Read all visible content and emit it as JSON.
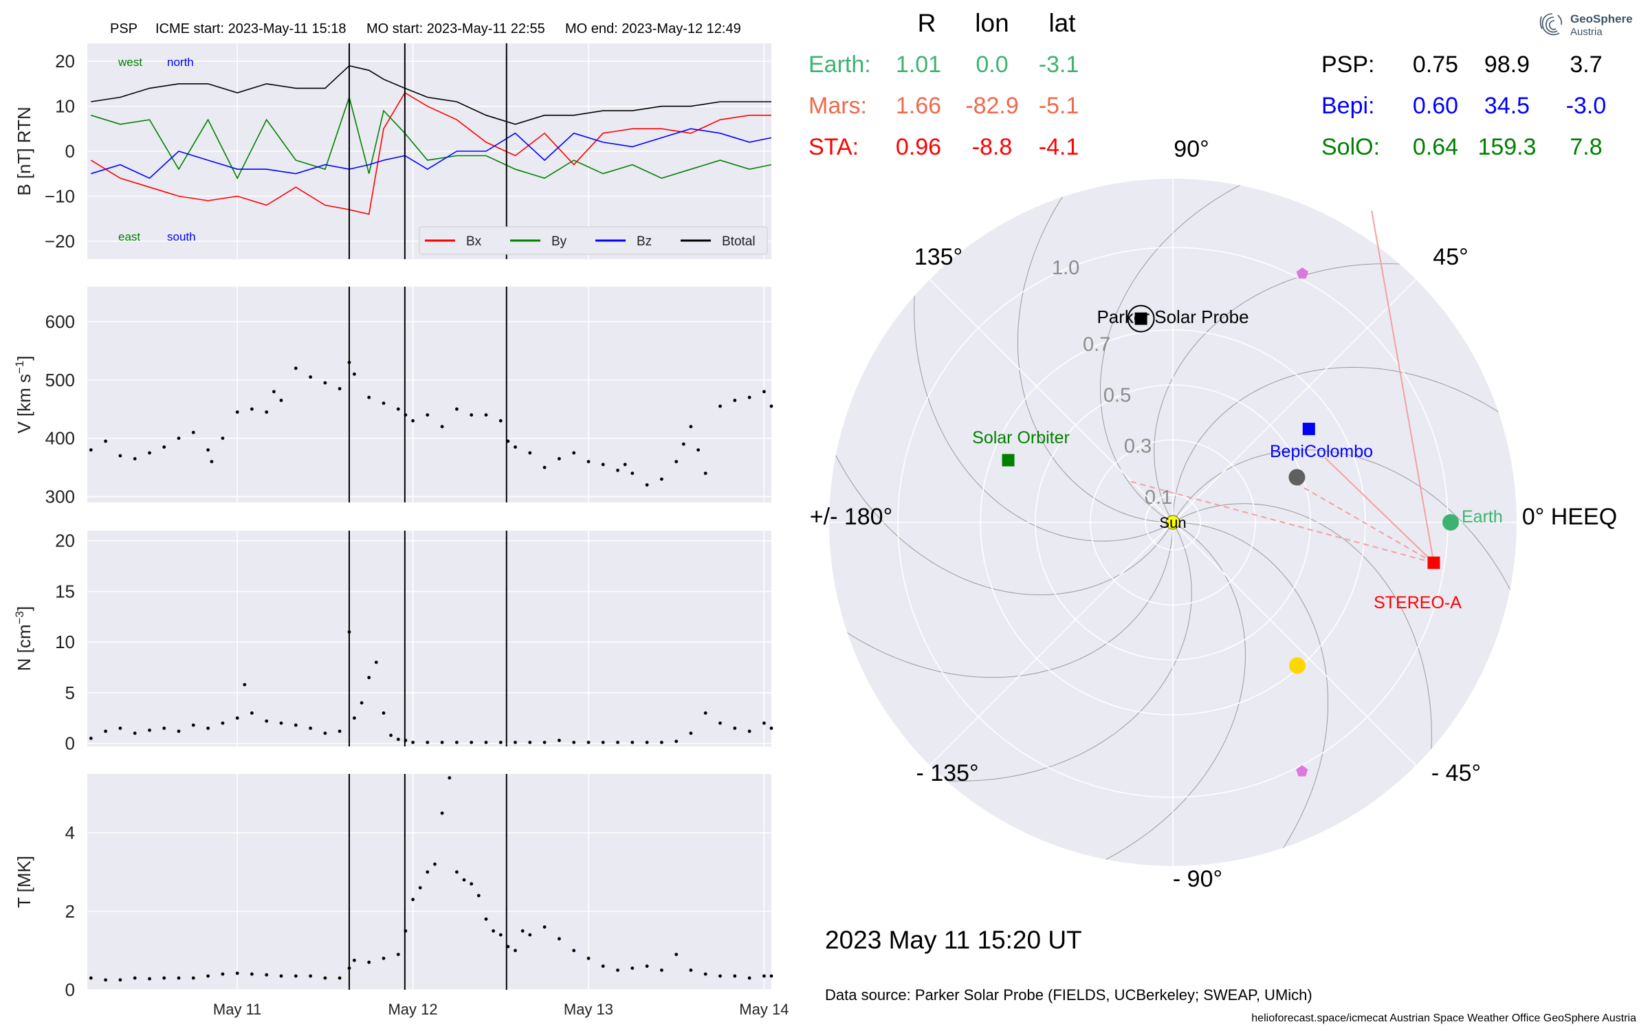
{
  "header": {
    "spacecraft": "PSP",
    "icme_start": "ICME start: 2023-May-11 15:18",
    "mo_start": "MO start: 2023-May-11 22:55",
    "mo_end": "MO end: 2023-May-12 12:49"
  },
  "table": {
    "columns": [
      "R",
      "lon",
      "lat"
    ],
    "left": [
      {
        "name": "Earth:",
        "R": "1.01",
        "lon": "0.0",
        "lat": "-3.1",
        "color": "#3cb371"
      },
      {
        "name": "Mars:",
        "R": "1.66",
        "lon": "-82.9",
        "lat": "-5.1",
        "color": "#f0694b"
      },
      {
        "name": "STA:",
        "R": "0.96",
        "lon": "-8.8",
        "lat": "-4.1",
        "color": "#ff0000"
      }
    ],
    "right": [
      {
        "name": "PSP:",
        "R": "0.75",
        "lon": "98.9",
        "lat": "3.7",
        "color": "#000000"
      },
      {
        "name": "Bepi:",
        "R": "0.60",
        "lon": "34.5",
        "lat": "-3.0",
        "color": "#0000ff"
      },
      {
        "name": "SolO:",
        "R": "0.64",
        "lon": "159.3",
        "lat": "7.8",
        "color": "#008000"
      }
    ]
  },
  "logo": {
    "name": "GeoSphere",
    "sub": "Austria"
  },
  "date_text": "2023 May 11  15:20 UT",
  "data_source": "Data source: Parker Solar Probe (FIELDS, UCBerkeley; SWEAP, UMich)",
  "footer": "helioforecast.space/icmecat   Austrian Space Weather Office   GeoSphere Austria",
  "chart_data": [
    {
      "type": "line",
      "ylabel": "B [nT] RTN",
      "ylim": [
        -24,
        24
      ],
      "yticks": [
        -20,
        -10,
        0,
        10,
        20
      ],
      "ytick_labels": [
        "−20",
        "−10",
        "0",
        "10",
        "20"
      ],
      "x_ticks": [
        "May 11",
        "May 12",
        "May 13",
        "May 14"
      ],
      "x_tick_hours": [
        24,
        48,
        72,
        96
      ],
      "xlim_hours": [
        3.5,
        97
      ],
      "event_lines_hours": [
        39.3,
        46.9,
        60.8
      ],
      "corner_labels": [
        {
          "text": "west",
          "color": "#008000",
          "pos": "top-left"
        },
        {
          "text": "north",
          "color": "#0000ff",
          "pos": "top-left"
        },
        {
          "text": "east",
          "color": "#008000",
          "pos": "bottom-left"
        },
        {
          "text": "south",
          "color": "#0000ff",
          "pos": "bottom-left"
        }
      ],
      "legend": "bottom-right",
      "series": [
        {
          "name": "Bx",
          "color": "#ff0000",
          "x": [
            4,
            8,
            12,
            16,
            20,
            24,
            28,
            32,
            36,
            39.3,
            42,
            44,
            46.9,
            50,
            54,
            58,
            62,
            66,
            70,
            74,
            78,
            82,
            86,
            90,
            94,
            97
          ],
          "values": [
            -2,
            -6,
            -8,
            -10,
            -11,
            -10,
            -12,
            -8,
            -12,
            -13,
            -14,
            5,
            13,
            10,
            7,
            2,
            -1,
            4,
            -3,
            4,
            5,
            5,
            4,
            7,
            8,
            8
          ]
        },
        {
          "name": "By",
          "color": "#008000",
          "x": [
            4,
            8,
            12,
            16,
            20,
            24,
            28,
            32,
            36,
            39.3,
            42,
            44,
            46.9,
            50,
            54,
            58,
            62,
            66,
            70,
            74,
            78,
            82,
            86,
            90,
            94,
            97
          ],
          "values": [
            8,
            6,
            7,
            -4,
            7,
            -6,
            7,
            -2,
            -4,
            12,
            -5,
            9,
            4,
            -2,
            -1,
            -1,
            -4,
            -6,
            -2,
            -5,
            -3,
            -6,
            -4,
            -2,
            -4,
            -3
          ]
        },
        {
          "name": "Bz",
          "color": "#0000ff",
          "x": [
            4,
            8,
            12,
            16,
            20,
            24,
            28,
            32,
            36,
            39.3,
            42,
            44,
            46.9,
            50,
            54,
            58,
            62,
            66,
            70,
            74,
            78,
            82,
            86,
            90,
            94,
            97
          ],
          "values": [
            -5,
            -3,
            -6,
            0,
            -2,
            -4,
            -4,
            -5,
            -3,
            -4,
            -3,
            -2,
            -1,
            -4,
            0,
            0,
            4,
            -2,
            4,
            2,
            1,
            3,
            5,
            4,
            2,
            3
          ]
        },
        {
          "name": "Btotal",
          "color": "#000000",
          "x": [
            4,
            8,
            12,
            16,
            20,
            24,
            28,
            32,
            36,
            39.3,
            42,
            44,
            46.9,
            50,
            54,
            58,
            62,
            66,
            70,
            74,
            78,
            82,
            86,
            90,
            94,
            97
          ],
          "values": [
            11,
            12,
            14,
            15,
            15,
            13,
            15,
            14,
            14,
            19,
            18,
            16,
            14,
            12,
            11,
            8,
            6,
            8,
            8,
            9,
            9,
            10,
            10,
            11,
            11,
            11
          ]
        }
      ]
    },
    {
      "type": "scatter",
      "ylabel": "V [km s",
      "ylabel_sup": "−1",
      "ylabel_end": "]",
      "ylim": [
        290,
        660
      ],
      "yticks": [
        300,
        400,
        500,
        600
      ],
      "ytick_labels": [
        "300",
        "400",
        "500",
        "600"
      ],
      "x_ticks": [
        "May 11",
        "May 12",
        "May 13",
        "May 14"
      ],
      "x_tick_hours": [
        24,
        48,
        72,
        96
      ],
      "xlim_hours": [
        3.5,
        97
      ],
      "event_lines_hours": [
        39.3,
        46.9,
        60.8
      ],
      "series": [
        {
          "name": "",
          "color": "#000000",
          "x": [
            4,
            6,
            8,
            10,
            12,
            14,
            16,
            18,
            20,
            20.5,
            22,
            24,
            26,
            28,
            29,
            30,
            32,
            34,
            36,
            38,
            39.3,
            40,
            42,
            44,
            46,
            47,
            48,
            50,
            52,
            54,
            56,
            58,
            60,
            61,
            62,
            64,
            66,
            68,
            70,
            72,
            74,
            76,
            77,
            78,
            80,
            82,
            84,
            85,
            86,
            87,
            88,
            90,
            92,
            94,
            96,
            97
          ],
          "values": [
            380,
            395,
            370,
            365,
            375,
            385,
            400,
            410,
            380,
            360,
            400,
            445,
            450,
            445,
            480,
            465,
            520,
            505,
            495,
            485,
            530,
            510,
            470,
            460,
            450,
            440,
            430,
            440,
            420,
            450,
            440,
            440,
            430,
            395,
            385,
            375,
            350,
            365,
            375,
            360,
            355,
            345,
            355,
            340,
            320,
            330,
            360,
            390,
            420,
            380,
            340,
            455,
            465,
            470,
            480,
            455
          ]
        }
      ]
    },
    {
      "type": "scatter",
      "ylabel": "N [cm",
      "ylabel_sup": "−3",
      "ylabel_end": "]",
      "ylim": [
        -0.3,
        21
      ],
      "yticks": [
        0,
        5,
        10,
        15,
        20
      ],
      "ytick_labels": [
        "0",
        "5",
        "10",
        "15",
        "20"
      ],
      "x_ticks": [
        "May 11",
        "May 12",
        "May 13",
        "May 14"
      ],
      "x_tick_hours": [
        24,
        48,
        72,
        96
      ],
      "xlim_hours": [
        3.5,
        97
      ],
      "event_lines_hours": [
        39.3,
        46.9,
        60.8
      ],
      "series": [
        {
          "name": "",
          "color": "#000000",
          "x": [
            4,
            6,
            8,
            10,
            12,
            14,
            16,
            18,
            20,
            22,
            24,
            25,
            26,
            28,
            30,
            32,
            34,
            36,
            38,
            39.3,
            40,
            41,
            42,
            43,
            44,
            45,
            46,
            47,
            48,
            50,
            52,
            54,
            56,
            58,
            60,
            62,
            64,
            66,
            68,
            70,
            72,
            74,
            76,
            78,
            80,
            82,
            84,
            86,
            88,
            90,
            92,
            94,
            96,
            97
          ],
          "values": [
            0.5,
            1.2,
            1.5,
            1.0,
            1.3,
            1.5,
            1.2,
            1.8,
            1.5,
            2.0,
            2.5,
            5.8,
            3.0,
            2.2,
            2.0,
            1.8,
            1.5,
            1.0,
            1.2,
            11.0,
            2.5,
            4.0,
            6.5,
            8.0,
            3.0,
            0.8,
            0.4,
            0.3,
            0.1,
            0.1,
            0.1,
            0.1,
            0.1,
            0.1,
            0.1,
            0.1,
            0.1,
            0.1,
            0.3,
            0.1,
            0.1,
            0.1,
            0.1,
            0.1,
            0.1,
            0.1,
            0.2,
            1.0,
            3.0,
            2.0,
            1.5,
            1.2,
            2.0,
            1.5
          ]
        }
      ]
    },
    {
      "type": "scatter",
      "ylabel": "T [MK]",
      "ylim": [
        0,
        5.5
      ],
      "yticks": [
        0,
        2,
        4
      ],
      "ytick_labels": [
        "0",
        "2",
        "4"
      ],
      "x_ticks": [
        "May 11",
        "May 12",
        "May 13",
        "May 14"
      ],
      "x_tick_hours": [
        24,
        48,
        72,
        96
      ],
      "xlim_hours": [
        3.5,
        97
      ],
      "event_lines_hours": [
        39.3,
        46.9,
        60.8
      ],
      "series": [
        {
          "name": "",
          "color": "#000000",
          "x": [
            4,
            6,
            8,
            10,
            12,
            14,
            16,
            18,
            20,
            22,
            24,
            26,
            28,
            30,
            32,
            34,
            36,
            38,
            39.3,
            40,
            42,
            44,
            46,
            47,
            48,
            49,
            50,
            51,
            52,
            53,
            54,
            55,
            56,
            57,
            58,
            59,
            60,
            61,
            62,
            63,
            64,
            66,
            68,
            70,
            72,
            74,
            76,
            78,
            80,
            82,
            84,
            86,
            88,
            90,
            92,
            94,
            96,
            97
          ],
          "values": [
            0.3,
            0.25,
            0.25,
            0.3,
            0.28,
            0.3,
            0.3,
            0.3,
            0.35,
            0.4,
            0.42,
            0.4,
            0.38,
            0.35,
            0.35,
            0.35,
            0.3,
            0.3,
            0.55,
            0.75,
            0.7,
            0.8,
            0.9,
            1.5,
            2.3,
            2.6,
            3.0,
            3.2,
            4.5,
            5.4,
            3.0,
            2.8,
            2.7,
            2.4,
            1.8,
            1.5,
            1.4,
            1.1,
            1.0,
            1.5,
            1.4,
            1.6,
            1.3,
            1.0,
            0.8,
            0.6,
            0.5,
            0.55,
            0.6,
            0.5,
            0.9,
            0.5,
            0.4,
            0.35,
            0.35,
            0.3,
            0.35,
            0.35
          ]
        }
      ]
    },
    {
      "type": "scatter",
      "title": "",
      "projection": "polar",
      "angle_labels": [
        {
          "deg": 0,
          "text": "0° HEEQ"
        },
        {
          "deg": 45,
          "text": "45°"
        },
        {
          "deg": 90,
          "text": "90°"
        },
        {
          "deg": 135,
          "text": "135°"
        },
        {
          "deg": 180,
          "text": "+/- 180°"
        },
        {
          "deg": -135,
          "text": "- 135°"
        },
        {
          "deg": -90,
          "text": "- 90°"
        },
        {
          "deg": -45,
          "text": "- 45°"
        }
      ],
      "radial_ticks": [
        0.1,
        0.3,
        0.5,
        0.7,
        1.0
      ],
      "radial_tick_labels": [
        "0.1",
        "0.3",
        "0.5",
        "0.7",
        "1.0"
      ],
      "rmax": 1.25,
      "bodies": [
        {
          "label": "Sun",
          "r": 0,
          "lon_deg": 0,
          "color": "#ffff00",
          "marker": "circle"
        },
        {
          "label": "Earth",
          "r": 1.01,
          "lon_deg": 0.0,
          "color": "#3cb371",
          "marker": "circle"
        },
        {
          "label": "STEREO-A",
          "r": 0.96,
          "lon_deg": -8.8,
          "color": "#ff0000",
          "marker": "square"
        },
        {
          "label": "Parker Solar Probe",
          "r": 0.75,
          "lon_deg": 98.9,
          "color": "#000000",
          "marker": "square"
        },
        {
          "label": "BepiColombo",
          "r": 0.6,
          "lon_deg": 34.5,
          "color": "#0000ff",
          "marker": "square"
        },
        {
          "label": "Solar Orbiter",
          "r": 0.64,
          "lon_deg": 159.3,
          "color": "#008000",
          "marker": "square"
        },
        {
          "label": "",
          "r": 0.48,
          "lon_deg": 20,
          "color": "#5f5f5f",
          "marker": "circle"
        },
        {
          "label": "",
          "r": 0.69,
          "lon_deg": -49,
          "color": "#ffd700",
          "marker": "circle"
        },
        {
          "label": "",
          "r": 1.02,
          "lon_deg": 62.5,
          "color": "#dd77dd",
          "marker": "pentagon"
        },
        {
          "label": "",
          "r": 1.02,
          "lon_deg": -62.6,
          "color": "#dd77dd",
          "marker": "pentagon"
        }
      ]
    }
  ]
}
